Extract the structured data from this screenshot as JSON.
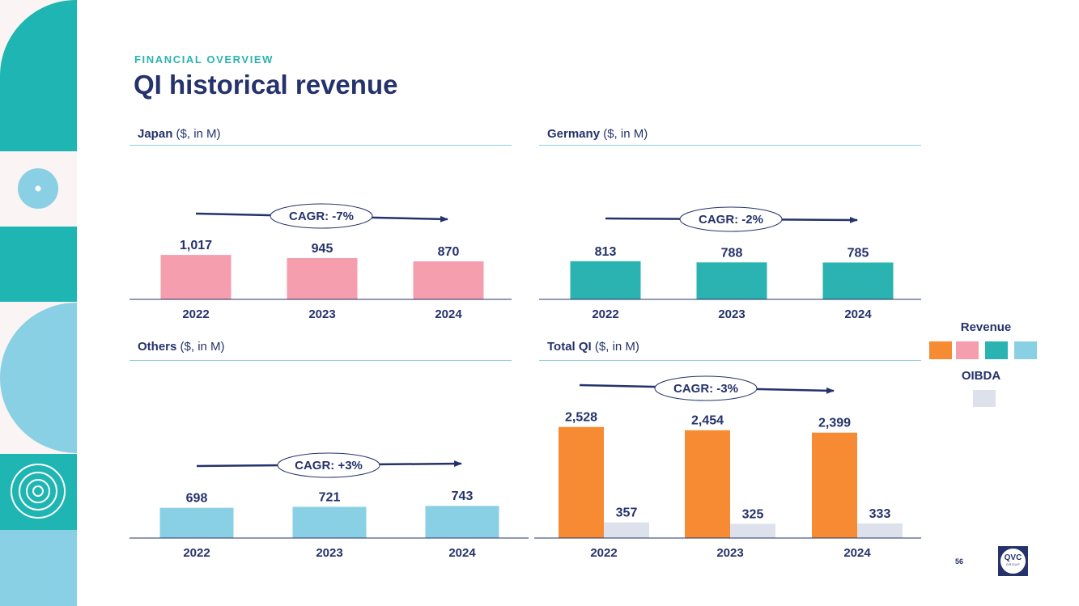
{
  "header": {
    "kicker": "FINANCIAL OVERVIEW",
    "title": "QI historical revenue"
  },
  "colors": {
    "navy": "#25326b",
    "teal": "#2ab3b0",
    "pink": "#f59eae",
    "light_blue": "#8ad0e4",
    "orange": "#f68b33",
    "oibda_gray": "#dde1ec"
  },
  "legend": {
    "revenue_label": "Revenue",
    "oibda_label": "OIBDA"
  },
  "footer": {
    "page_number": "56",
    "logo_text": "QVC",
    "logo_subtext": "GROUP"
  },
  "chart_data": [
    {
      "type": "bar",
      "title_bold": "Japan",
      "title_rest": " ($, in M)",
      "categories": [
        "2022",
        "2023",
        "2024"
      ],
      "series": [
        {
          "name": "Revenue",
          "values": [
            1017,
            945,
            870
          ],
          "labels": [
            "1,017",
            "945",
            "870"
          ],
          "color": "#f59eae"
        }
      ],
      "cagr": "CAGR: -7%"
    },
    {
      "type": "bar",
      "title_bold": "Germany",
      "title_rest": " ($, in M)",
      "categories": [
        "2022",
        "2023",
        "2024"
      ],
      "series": [
        {
          "name": "Revenue",
          "values": [
            813,
            788,
            785
          ],
          "labels": [
            "813",
            "788",
            "785"
          ],
          "color": "#2ab3b0"
        }
      ],
      "cagr": "CAGR: -2%"
    },
    {
      "type": "bar",
      "title_bold": "Others",
      "title_rest": " ($, in M)",
      "categories": [
        "2022",
        "2023",
        "2024"
      ],
      "series": [
        {
          "name": "Revenue",
          "values": [
            698,
            721,
            743
          ],
          "labels": [
            "698",
            "721",
            "743"
          ],
          "color": "#8ad0e4"
        }
      ],
      "cagr": "CAGR: +3%"
    },
    {
      "type": "bar",
      "title_bold": "Total QI",
      "title_rest": " ($, in M)",
      "categories": [
        "2022",
        "2023",
        "2024"
      ],
      "series": [
        {
          "name": "Revenue",
          "values": [
            2528,
            2454,
            2399
          ],
          "labels": [
            "2,528",
            "2,454",
            "2,399"
          ],
          "color": "#f68b33"
        },
        {
          "name": "OIBDA",
          "values": [
            357,
            325,
            333
          ],
          "labels": [
            "357",
            "325",
            "333"
          ],
          "color": "#dde1ec"
        }
      ],
      "cagr": "CAGR: -3%"
    }
  ]
}
